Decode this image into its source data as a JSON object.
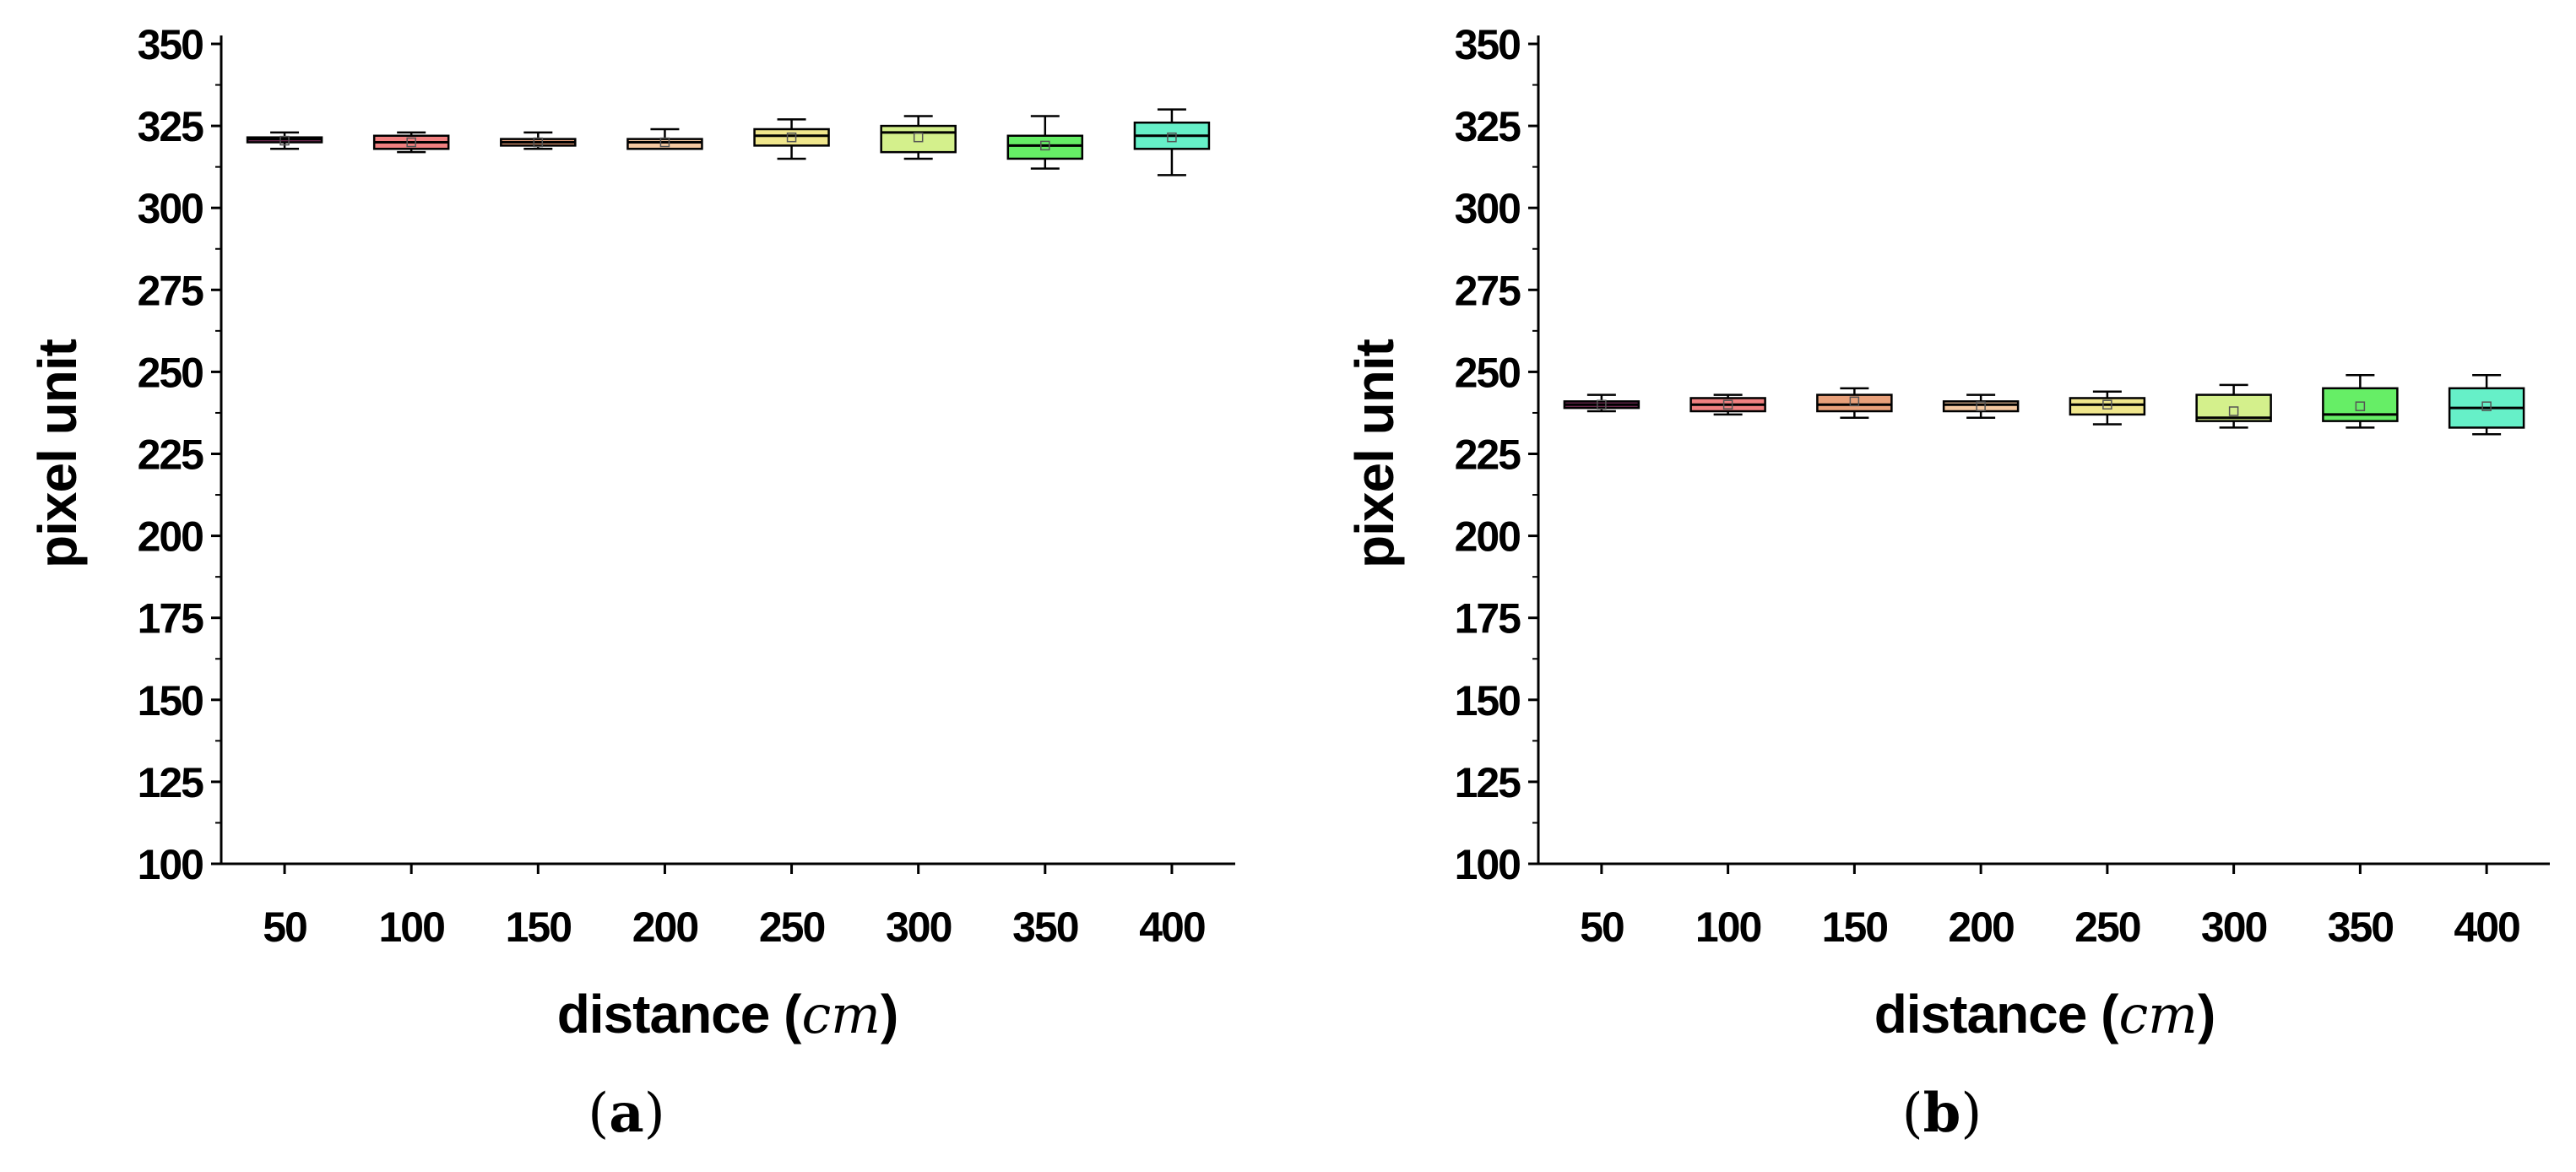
{
  "chart_data": [
    {
      "panel": "(a)",
      "panel_letter": "a",
      "type": "box",
      "title": "",
      "xlabel": "distance",
      "xlabel_unit": "cm",
      "ylabel": "pixel unit",
      "ylim": [
        100,
        350
      ],
      "yticks": [
        100,
        125,
        150,
        175,
        200,
        225,
        250,
        275,
        300,
        325,
        350
      ],
      "categories": [
        "50",
        "100",
        "150",
        "200",
        "250",
        "300",
        "350",
        "400"
      ],
      "colors": [
        "#7b2f5a",
        "#f08080",
        "#e8a07a",
        "#f4c8a0",
        "#f0e68c",
        "#d4f08c",
        "#66ee66",
        "#66f0c8"
      ],
      "boxes": [
        {
          "min": 318,
          "q1": 320,
          "median": 321,
          "q3": 321.5,
          "max": 323,
          "mean": 320.5
        },
        {
          "min": 317,
          "q1": 318,
          "median": 320,
          "q3": 322,
          "max": 323,
          "mean": 320
        },
        {
          "min": 318,
          "q1": 319,
          "median": 320,
          "q3": 321,
          "max": 323,
          "mean": 320
        },
        {
          "min": 318,
          "q1": 318,
          "median": 320,
          "q3": 321,
          "max": 324,
          "mean": 320
        },
        {
          "min": 315,
          "q1": 319,
          "median": 322,
          "q3": 324,
          "max": 327,
          "mean": 321.5
        },
        {
          "min": 315,
          "q1": 317,
          "median": 323,
          "q3": 325,
          "max": 328,
          "mean": 321.5
        },
        {
          "min": 312,
          "q1": 315,
          "median": 319,
          "q3": 322,
          "max": 328,
          "mean": 319
        },
        {
          "min": 310,
          "q1": 318,
          "median": 322,
          "q3": 326,
          "max": 330,
          "mean": 321.5
        }
      ]
    },
    {
      "panel": "(b)",
      "panel_letter": "b",
      "type": "box",
      "title": "",
      "xlabel": "distance",
      "xlabel_unit": "cm",
      "ylabel": "pixel unit",
      "ylim": [
        100,
        350
      ],
      "yticks": [
        100,
        125,
        150,
        175,
        200,
        225,
        250,
        275,
        300,
        325,
        350
      ],
      "categories": [
        "50",
        "100",
        "150",
        "200",
        "250",
        "300",
        "350",
        "400"
      ],
      "colors": [
        "#7b2f5a",
        "#f08080",
        "#e8a07a",
        "#f4c8a0",
        "#f0e68c",
        "#d4f08c",
        "#66ee66",
        "#66f0c8"
      ],
      "boxes": [
        {
          "min": 238,
          "q1": 239,
          "median": 240,
          "q3": 241,
          "max": 243,
          "mean": 240
        },
        {
          "min": 237,
          "q1": 238,
          "median": 240,
          "q3": 242,
          "max": 243,
          "mean": 240
        },
        {
          "min": 236,
          "q1": 238,
          "median": 240,
          "q3": 243,
          "max": 245,
          "mean": 241
        },
        {
          "min": 236,
          "q1": 238,
          "median": 240,
          "q3": 241,
          "max": 243,
          "mean": 239.5
        },
        {
          "min": 234,
          "q1": 237,
          "median": 240,
          "q3": 242,
          "max": 244,
          "mean": 240
        },
        {
          "min": 233,
          "q1": 235,
          "median": 236,
          "q3": 243,
          "max": 246,
          "mean": 238
        },
        {
          "min": 233,
          "q1": 235,
          "median": 237,
          "q3": 245,
          "max": 249,
          "mean": 239.5
        },
        {
          "min": 231,
          "q1": 233,
          "median": 239,
          "q3": 245,
          "max": 249,
          "mean": 239.5
        }
      ]
    }
  ]
}
